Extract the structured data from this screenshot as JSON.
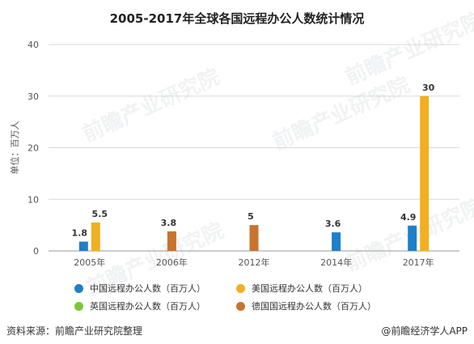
{
  "title": "2005-2017年全球各国远程办公人数统计情况",
  "source_left": "资料来源：前瞻产业研究院整理",
  "source_right": "@前瞻经济学人APP",
  "watermark": "前瞻产业研究院",
  "chart_data": {
    "type": "bar",
    "title": "2005-2017年全球各国远程办公人数统计情况",
    "ylabel": "单位：百万人",
    "xlabel": "",
    "ylim": [
      0,
      40
    ],
    "yticks": [
      0,
      10,
      20,
      30,
      40
    ],
    "categories": [
      "2005年",
      "2006年",
      "2012年",
      "2014年",
      "2017年"
    ],
    "grid": "horizontal",
    "legend_position": "bottom",
    "series": [
      {
        "name": "中国远程办公人数（百万人）",
        "color": "#1f7fc8",
        "values": [
          1.8,
          null,
          null,
          3.6,
          4.9
        ]
      },
      {
        "name": "美国远程办公人数（百万人）",
        "color": "#f0b020",
        "values": [
          5.5,
          null,
          null,
          null,
          30
        ]
      },
      {
        "name": "英国远程办公人数（百万人）",
        "color": "#7cc63a",
        "values": [
          null,
          null,
          null,
          null,
          null
        ]
      },
      {
        "name": "德国国远程办公人数（百万人）",
        "color": "#c8732e",
        "values": [
          null,
          3.8,
          5,
          null,
          null
        ]
      }
    ]
  }
}
